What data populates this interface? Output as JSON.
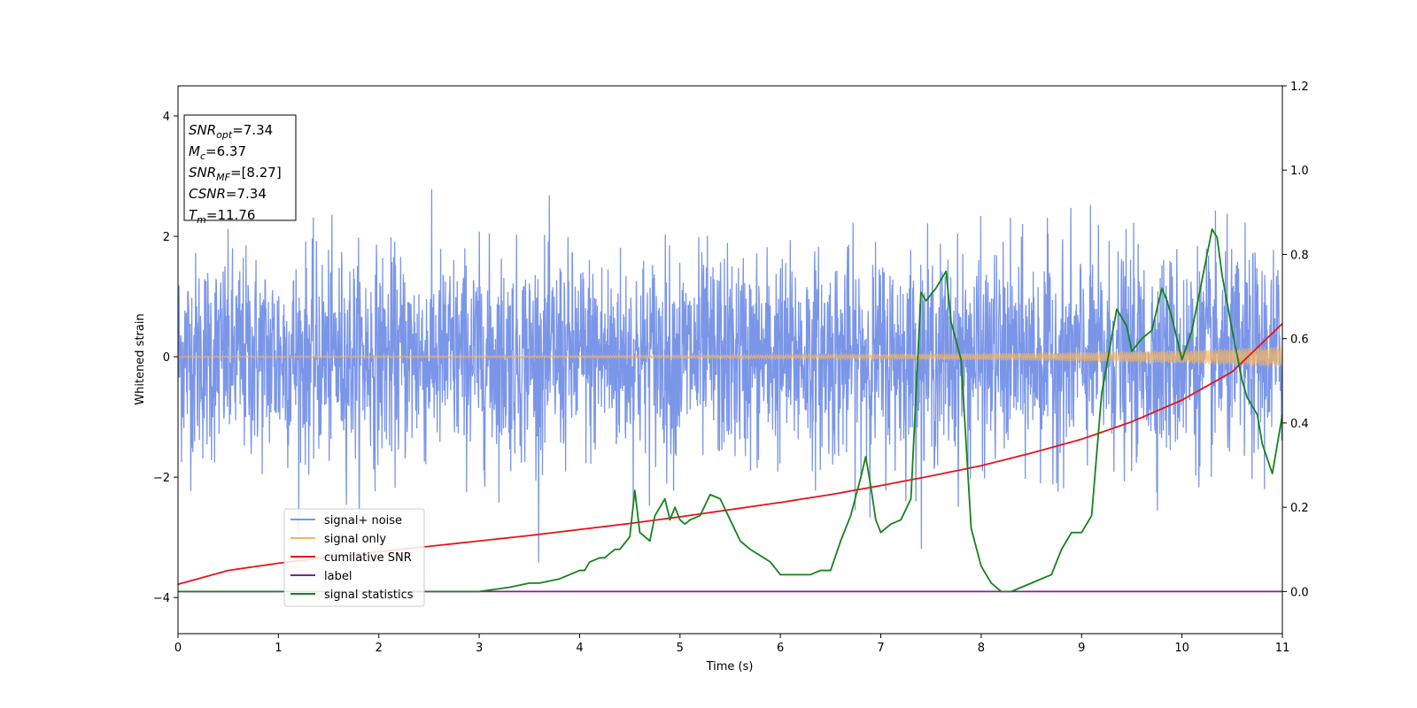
{
  "chart_data": {
    "type": "line",
    "title": "",
    "xlabel": "Time (s)",
    "ylabel": "Whitened strain",
    "y2label": "",
    "xlim": [
      0,
      11
    ],
    "ylim": [
      -4.6,
      4.5
    ],
    "y2lim": [
      -0.1,
      1.2
    ],
    "xticks": [
      0,
      1,
      2,
      3,
      4,
      5,
      6,
      7,
      8,
      9,
      10,
      11
    ],
    "yticks": [
      -4,
      -2,
      0,
      2,
      4
    ],
    "y2ticks": [
      0.0,
      0.2,
      0.4,
      0.6,
      0.8,
      1.0,
      1.2
    ],
    "y2tick_labels": [
      "0.0",
      "0.2",
      "0.4",
      "0.6",
      "0.8",
      "1.0",
      "1.2"
    ],
    "grid": false,
    "legend_position": "lower-left",
    "colors": {
      "signal_noise": "#7b96e8",
      "signal_only": "#f5b461",
      "cumulative_snr": "#e8141b",
      "label": "#8b1a9b",
      "signal_statistics": "#16821c",
      "frame": "#000000"
    },
    "series": [
      {
        "name": "signal+ noise",
        "axis": "left",
        "note_kind": "noise",
        "envelope": {
          "sigma": 0.85,
          "visible_range": [
            -4.15,
            3.55
          ]
        }
      },
      {
        "name": "signal only",
        "axis": "left",
        "x": [
          0,
          1,
          2,
          3,
          4,
          5,
          6,
          7,
          8,
          9,
          10,
          10.5,
          11
        ],
        "amplitude": [
          0.01,
          0.012,
          0.014,
          0.017,
          0.02,
          0.025,
          0.032,
          0.042,
          0.055,
          0.075,
          0.11,
          0.14,
          0.18
        ]
      },
      {
        "name": "cumilative SNR",
        "axis": "left",
        "x": [
          0,
          0.5,
          1,
          1.5,
          2,
          2.5,
          3,
          3.5,
          4,
          4.5,
          5,
          5.5,
          6,
          6.5,
          7,
          7.5,
          8,
          8.5,
          9,
          9.5,
          10,
          10.5,
          11
        ],
        "y": [
          -3.78,
          -3.55,
          -3.43,
          -3.33,
          -3.24,
          -3.15,
          -3.06,
          -2.97,
          -2.87,
          -2.77,
          -2.66,
          -2.54,
          -2.42,
          -2.29,
          -2.14,
          -1.98,
          -1.81,
          -1.6,
          -1.37,
          -1.08,
          -0.72,
          -0.25,
          0.55
        ]
      },
      {
        "name": "label",
        "axis": "right",
        "x": [
          0,
          11
        ],
        "y": [
          0.0,
          0.0
        ]
      },
      {
        "name": "signal statistics",
        "axis": "right",
        "x": [
          0,
          0.5,
          1,
          1.5,
          2,
          2.5,
          2.8,
          3,
          3.3,
          3.5,
          3.6,
          3.8,
          3.9,
          4,
          4.05,
          4.1,
          4.2,
          4.25,
          4.35,
          4.4,
          4.5,
          4.55,
          4.6,
          4.7,
          4.75,
          4.85,
          4.9,
          4.95,
          5.0,
          5.05,
          5.1,
          5.2,
          5.3,
          5.4,
          5.5,
          5.6,
          5.7,
          5.9,
          6.0,
          6.1,
          6.3,
          6.4,
          6.5,
          6.6,
          6.65,
          6.7,
          6.8,
          6.85,
          6.9,
          6.95,
          7.0,
          7.1,
          7.2,
          7.3,
          7.4,
          7.45,
          7.55,
          7.65,
          7.7,
          7.8,
          7.9,
          8.0,
          8.1,
          8.2,
          8.3,
          8.4,
          8.5,
          8.7,
          8.8,
          8.9,
          9.0,
          9.1,
          9.2,
          9.35,
          9.45,
          9.5,
          9.6,
          9.7,
          9.8,
          9.85,
          9.9,
          10.0,
          10.1,
          10.2,
          10.3,
          10.35,
          10.4,
          10.5,
          10.6,
          10.65,
          10.75,
          10.8,
          10.9,
          11.0
        ],
        "y": [
          0.0,
          0.0,
          0.0,
          0.0,
          0.0,
          0.0,
          0.0,
          0.0,
          0.01,
          0.02,
          0.02,
          0.03,
          0.04,
          0.05,
          0.05,
          0.07,
          0.08,
          0.08,
          0.1,
          0.1,
          0.13,
          0.24,
          0.14,
          0.12,
          0.18,
          0.22,
          0.17,
          0.2,
          0.17,
          0.16,
          0.17,
          0.18,
          0.23,
          0.22,
          0.17,
          0.12,
          0.1,
          0.07,
          0.04,
          0.04,
          0.04,
          0.05,
          0.05,
          0.12,
          0.15,
          0.18,
          0.27,
          0.32,
          0.25,
          0.17,
          0.14,
          0.16,
          0.17,
          0.22,
          0.71,
          0.69,
          0.72,
          0.76,
          0.64,
          0.55,
          0.15,
          0.06,
          0.02,
          0.0,
          0.0,
          0.01,
          0.02,
          0.04,
          0.1,
          0.14,
          0.14,
          0.18,
          0.47,
          0.67,
          0.63,
          0.57,
          0.6,
          0.62,
          0.72,
          0.69,
          0.65,
          0.55,
          0.62,
          0.74,
          0.86,
          0.84,
          0.75,
          0.62,
          0.5,
          0.46,
          0.42,
          0.35,
          0.28,
          0.42
        ]
      }
    ],
    "annotation_box": {
      "lines": [
        {
          "main": "SNR",
          "sub": "opt",
          "rest": "=7.34"
        },
        {
          "main": "M",
          "sub": "c",
          "rest": "=6.37"
        },
        {
          "main": "SNR",
          "sub": "MF",
          "rest": "=[8.27]"
        },
        {
          "main": "CSNR",
          "sub": "",
          "rest": "=7.34"
        },
        {
          "main": "T",
          "sub": "m",
          "rest": "=11.76"
        }
      ]
    },
    "legend": [
      {
        "label": "signal+ noise",
        "color": "#7b96e8"
      },
      {
        "label": "signal only",
        "color": "#f5b461"
      },
      {
        "label": "cumilative SNR",
        "color": "#e8141b"
      },
      {
        "label": "label",
        "color": "#8b1a9b"
      },
      {
        "label": "signal statistics",
        "color": "#16821c"
      }
    ]
  }
}
